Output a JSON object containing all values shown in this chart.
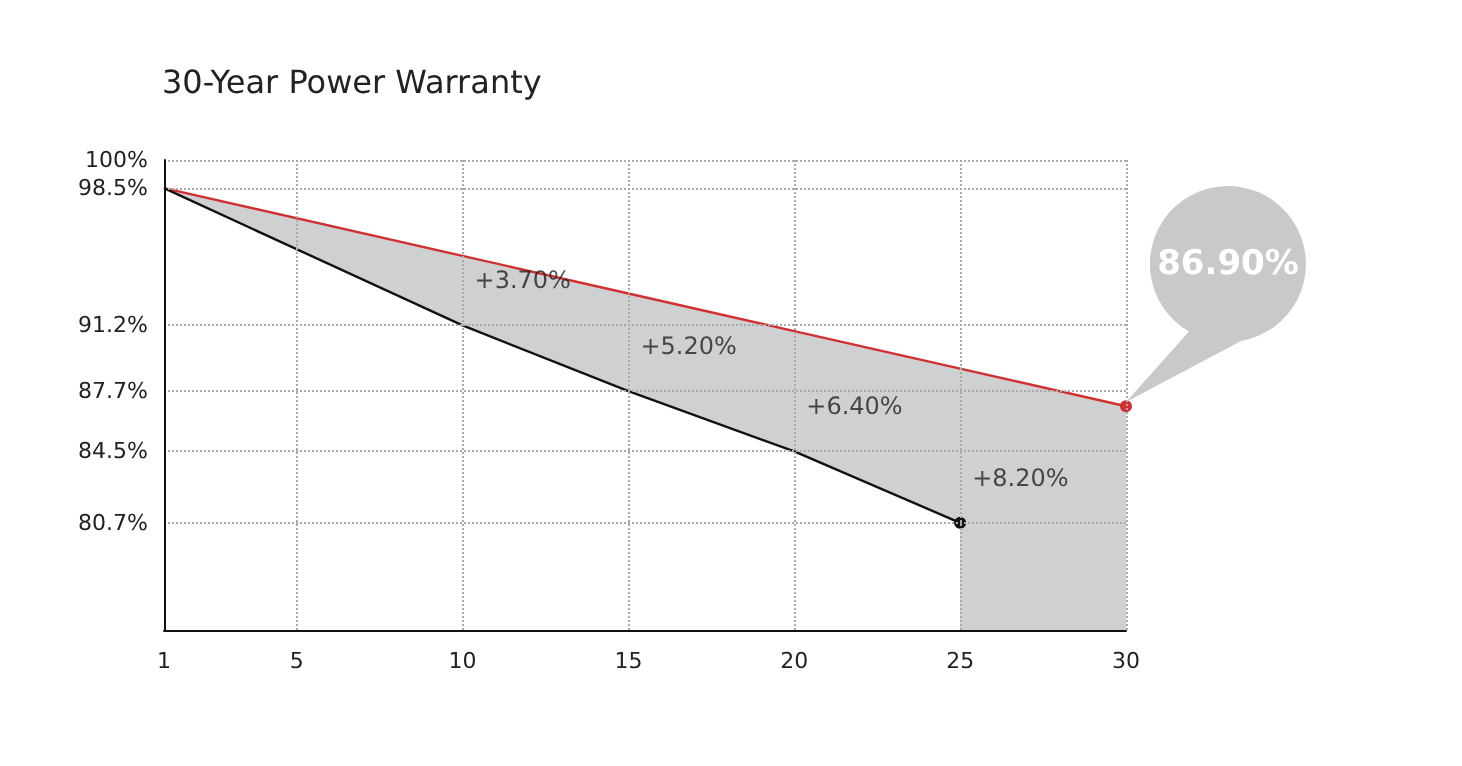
{
  "chart_data": {
    "type": "line",
    "title": "30-Year Power Warranty",
    "x": [
      1,
      10,
      15,
      20,
      25,
      30
    ],
    "series": [
      {
        "type": "area",
        "color": "#d0302f",
        "values": [
          98.5,
          94.9,
          92.9,
          90.9,
          88.9,
          86.9
        ]
      },
      {
        "color": "#111111",
        "values": [
          98.5,
          91.2,
          87.7,
          84.5,
          80.7,
          null
        ]
      }
    ],
    "xlim": [
      1,
      30
    ],
    "xticks": [
      1,
      5,
      10,
      15,
      20,
      25,
      30
    ],
    "ylim": [
      75,
      100
    ],
    "yticks": [
      {
        "value": 80.7,
        "label": "80.7%"
      },
      {
        "value": 84.5,
        "label": "84.5%"
      },
      {
        "value": 87.7,
        "label": "87.7%"
      },
      {
        "value": 91.2,
        "label": "91.2%"
      },
      {
        "value": 98.5,
        "label": "98.5%"
      },
      {
        "value": 100,
        "label": "100%"
      }
    ],
    "grid": true,
    "marker": "none",
    "line_style": "solid",
    "annotations": [
      {
        "text": "+3.70%",
        "x": 10,
        "y": 91.2
      },
      {
        "text": "+5.20%",
        "x": 15,
        "y": 87.7
      },
      {
        "text": "+6.40%",
        "x": 20,
        "y": 84.5
      },
      {
        "text": "+8.20%",
        "x": 25,
        "y": 80.7
      },
      "86.90%"
    ]
  }
}
